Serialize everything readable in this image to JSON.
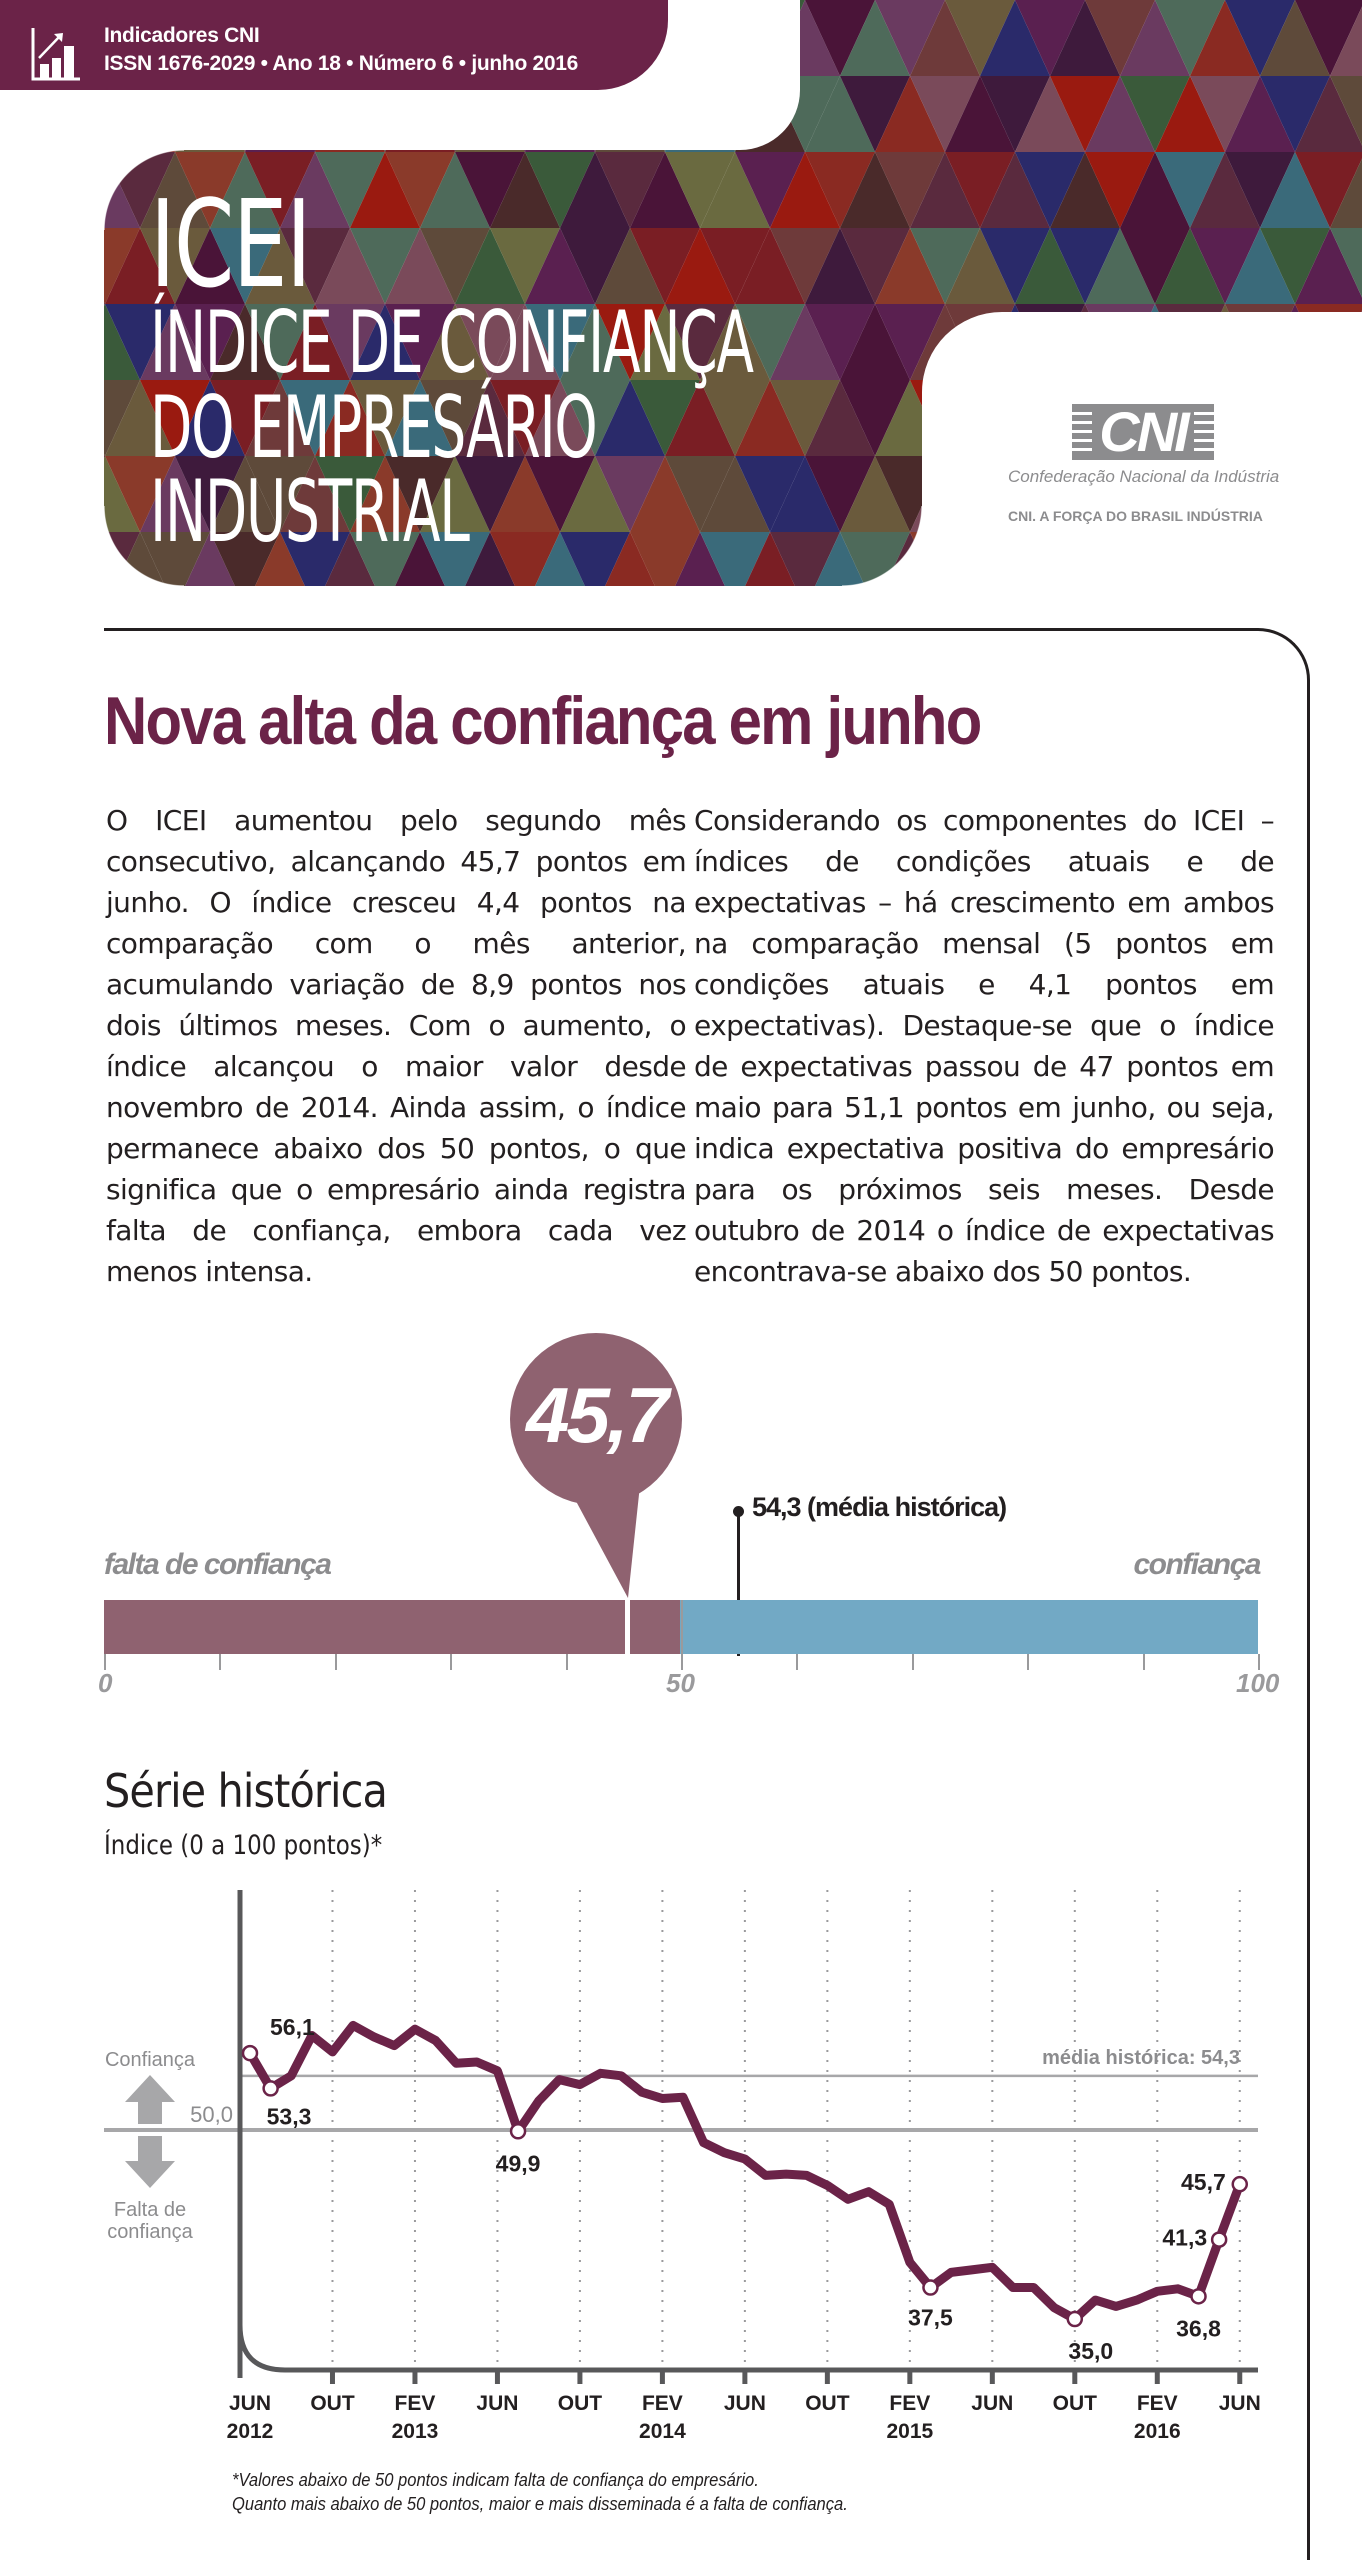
{
  "header": {
    "publication": "Indicadores CNI",
    "issue_line": "ISSN 1676-2029 • Ano 18 • Número 6 • junho 2016",
    "icon": "bar-chart-growth-icon",
    "bar_color": "#6b2348"
  },
  "title": {
    "acronym": "ICEI",
    "line1": "ÍNDICE DE CONFIANÇA",
    "line2": "DO EMPRESÁRIO",
    "line3": "INDUSTRIAL"
  },
  "logo": {
    "mark": "CNI",
    "name": "Confederação Nacional da Indústria",
    "tagline": "CNI. A FORÇA DO BRASIL INDÚSTRIA"
  },
  "article": {
    "headline": "Nova alta da confiança em junho",
    "paragraph_left": "O ICEI aumentou pelo segundo mês consecutivo, alcançando 45,7 pontos em junho. O índice cresceu 4,4 pontos na comparação com o mês anterior, acumulando variação de 8,9 pontos nos dois últimos meses. Com o aumento, o índice alcançou o maior valor desde novembro de 2014. Ainda assim, o índice permanece abaixo dos 50 pontos, o que significa que o empresário ainda registra falta de confiança, embora cada vez menos intensa.",
    "paragraph_right": "Considerando os componentes do ICEI – índices de condições atuais e de expectativas – há crescimento em ambos na comparação mensal (5 pontos em condições atuais e 4,1 pontos em expectativas). Destaque-se que o índice de expectativas passou de 47 pontos em maio para 51,1 pontos em junho, ou seja, indica expectativa positiva do empresário para os próximos seis meses. Desde outubro de 2014 o índice de expectativas encontrava-se abaixo dos 50 pontos."
  },
  "gauge": {
    "current_value": "45,7",
    "current_numeric": 45.7,
    "historical_mean_label": "54,3 (média histórica)",
    "historical_mean": 54.3,
    "label_left": "falta de confiança",
    "label_right": "confiança",
    "axis_labels": [
      "0",
      "50",
      "100"
    ],
    "color_low": "#8f6270",
    "color_high": "#72a9c5"
  },
  "series": {
    "title": "Série histórica",
    "subtitle": "Índice (0 a 100 pontos)*",
    "legend_up": "Confiança",
    "legend_down_1": "Falta de",
    "legend_down_2": "confiança",
    "baseline_label": "50,0",
    "mean_label": "média histórica: 54,3",
    "footnote_1": "*Valores abaixo de 50 pontos indicam falta de confiança do empresário.",
    "footnote_2": "Quanto mais abaixo de 50 pontos, maior e mais disseminada é a falta de confiança."
  },
  "chart_data": [
    {
      "type": "bar",
      "title": "ICEI junho 2016",
      "categories": [
        "ICEI"
      ],
      "values": [
        45.7
      ],
      "annotations": [
        {
          "label": "54,3 (média histórica)",
          "value": 54.3
        }
      ],
      "xlabel": "",
      "ylabel": "",
      "ylim": [
        0,
        100
      ],
      "ticks": [
        0,
        50,
        100
      ]
    },
    {
      "type": "line",
      "title": "Série histórica",
      "subtitle": "Índice (0 a 100 pontos)*",
      "x_tick_labels": [
        "JUN 2012",
        "OUT",
        "FEV 2013",
        "JUN",
        "OUT",
        "FEV 2014",
        "JUN",
        "OUT",
        "FEV 2015",
        "JUN",
        "OUT",
        "FEV 2016",
        "JUN"
      ],
      "x": [
        "jun/12",
        "jul/12",
        "ago/12",
        "set/12",
        "out/12",
        "nov/12",
        "dez/12",
        "jan/13",
        "fev/13",
        "mar/13",
        "abr/13",
        "mai/13",
        "jun/13",
        "jul/13",
        "ago/13",
        "set/13",
        "out/13",
        "nov/13",
        "dez/13",
        "jan/14",
        "fev/14",
        "mar/14",
        "abr/14",
        "mai/14",
        "jun/14",
        "jul/14",
        "ago/14",
        "set/14",
        "out/14",
        "nov/14",
        "dez/14",
        "jan/15",
        "fev/15",
        "mar/15",
        "abr/15",
        "mai/15",
        "jun/15",
        "jul/15",
        "ago/15",
        "set/15",
        "out/15",
        "nov/15",
        "dez/15",
        "jan/16",
        "fev/16",
        "mar/16",
        "abr/16",
        "mai/16",
        "jun/16"
      ],
      "series": [
        {
          "name": "ICEI",
          "color": "#6b2348",
          "values": [
            56.1,
            53.3,
            54.3,
            57.5,
            56.2,
            58.3,
            57.4,
            56.7,
            58.0,
            57.1,
            55.3,
            55.4,
            54.7,
            49.9,
            52.3,
            54.0,
            53.6,
            54.5,
            54.3,
            53.0,
            52.5,
            52.6,
            49.0,
            48.2,
            47.7,
            46.4,
            46.5,
            46.4,
            45.6,
            44.5,
            45.1,
            44.1,
            39.5,
            37.5,
            38.7,
            38.9,
            39.1,
            37.5,
            37.5,
            35.9,
            35.0,
            36.5,
            36.0,
            36.5,
            37.2,
            37.4,
            36.8,
            41.3,
            45.7
          ]
        }
      ],
      "labeled_points": [
        {
          "x": "jun/12",
          "value": 56.1,
          "label": "56,1"
        },
        {
          "x": "jul/12",
          "value": 53.3,
          "label": "53,3"
        },
        {
          "x": "jul/13",
          "value": 49.9,
          "label": "49,9"
        },
        {
          "x": "mar/15",
          "value": 37.5,
          "label": "37,5"
        },
        {
          "x": "out/15",
          "value": 35.0,
          "label": "35,0"
        },
        {
          "x": "abr/16",
          "value": 36.8,
          "label": "36,8"
        },
        {
          "x": "mai/16",
          "value": 41.3,
          "label": "41,3"
        },
        {
          "x": "jun/16",
          "value": 45.7,
          "label": "45,7"
        }
      ],
      "reference_lines": [
        {
          "value": 50.0,
          "label": "50,0"
        },
        {
          "value": 54.3,
          "label": "média histórica: 54,3"
        }
      ],
      "annotations": [
        "Confiança",
        "Falta de confiança"
      ],
      "xlabel": "",
      "ylabel": "Índice (0 a 100 pontos)",
      "ylim": [
        31,
        62
      ],
      "grid": "vertical dotted at tick months"
    }
  ]
}
